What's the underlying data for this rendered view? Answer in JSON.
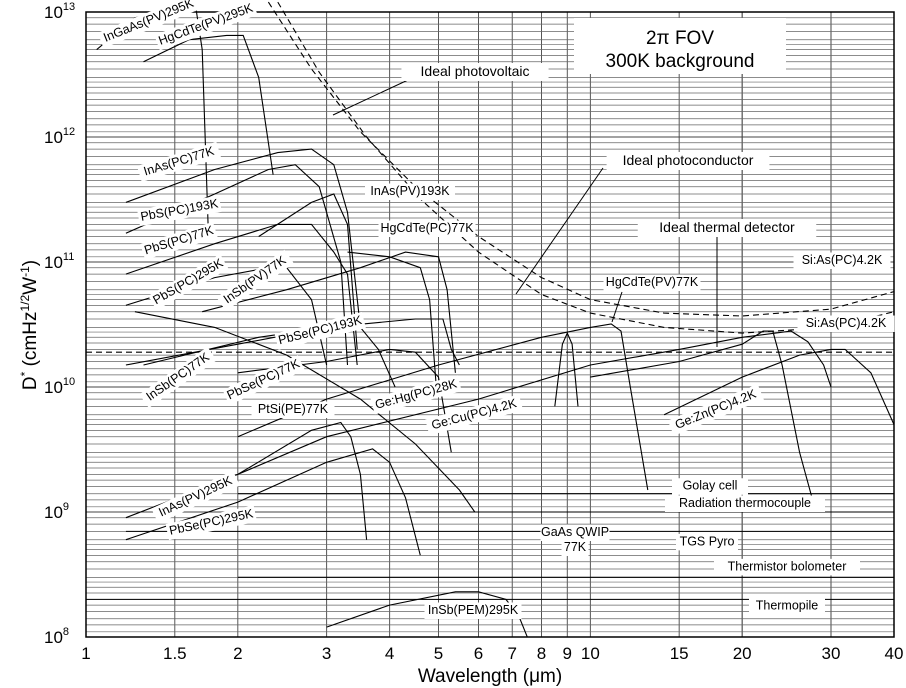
{
  "chart_data": {
    "type": "line",
    "title": "",
    "xlabel": "Wavelength (μm)",
    "ylabel": "D* (cmHz^1/2W^-1)",
    "x_scale": "log",
    "y_scale": "log",
    "xlim": [
      1,
      40
    ],
    "ylim": [
      100000000.0,
      10000000000000.0
    ],
    "grid": true,
    "x_ticks": [
      {
        "v": 1,
        "t": "1"
      },
      {
        "v": 1.5,
        "t": "1.5"
      },
      {
        "v": 2,
        "t": "2"
      },
      {
        "v": 3,
        "t": "3"
      },
      {
        "v": 4,
        "t": "4"
      },
      {
        "v": 5,
        "t": "5"
      },
      {
        "v": 6,
        "t": "6"
      },
      {
        "v": 7,
        "t": "7"
      },
      {
        "v": 8,
        "t": "8"
      },
      {
        "v": 9,
        "t": "9"
      },
      {
        "v": 10,
        "t": "10"
      },
      {
        "v": 15,
        "t": "15"
      },
      {
        "v": 20,
        "t": "20"
      },
      {
        "v": 30,
        "t": "30"
      },
      {
        "v": 40,
        "t": "40"
      }
    ],
    "y_ticks": [
      {
        "v": 100000000.0,
        "base": "10",
        "exp": "8"
      },
      {
        "v": 1000000000.0,
        "base": "10",
        "exp": "9"
      },
      {
        "v": 10000000000.0,
        "base": "10",
        "exp": "10"
      },
      {
        "v": 100000000000.0,
        "base": "10",
        "exp": "11"
      },
      {
        "v": 1000000000000.0,
        "base": "10",
        "exp": "12"
      },
      {
        "v": 10000000000000.0,
        "base": "10",
        "exp": "13"
      }
    ],
    "annotation": [
      "2π  FOV",
      "300K background"
    ],
    "ideal_curves": [
      {
        "name": "Ideal photovoltaic",
        "points": [
          [
            2.3,
            12000000000000.0
          ],
          [
            2.8,
            3500000000000.0
          ],
          [
            3.5,
            1100000000000.0
          ],
          [
            4.5,
            400000000000.0
          ],
          [
            6,
            160000000000.0
          ],
          [
            8,
            75000000000.0
          ],
          [
            10,
            50000000000.0
          ],
          [
            14,
            39000000000.0
          ],
          [
            20,
            37000000000.0
          ],
          [
            30,
            42000000000.0
          ],
          [
            40,
            58000000000.0
          ]
        ]
      },
      {
        "name": "Ideal photoconductor",
        "points": [
          [
            2.4,
            12000000000000.0
          ],
          [
            2.9,
            3300000000000.0
          ],
          [
            3.6,
            1000000000000.0
          ],
          [
            4.6,
            320000000000.0
          ],
          [
            6,
            120000000000.0
          ],
          [
            8,
            55000000000.0
          ],
          [
            10,
            39000000000.0
          ],
          [
            14,
            30000000000.0
          ],
          [
            20,
            27000000000.0
          ],
          [
            30,
            30000000000.0
          ],
          [
            40,
            40000000000.0
          ]
        ]
      },
      {
        "name": "Ideal thermal detector",
        "points": [
          [
            1,
            19000000000.0
          ],
          [
            40,
            19000000000.0
          ]
        ]
      }
    ],
    "thermal_detectors": [
      {
        "name": "Golay cell",
        "value": 1400000000.0,
        "x_start": 2
      },
      {
        "name": "Radiation thermocouple",
        "value": 1000000000.0,
        "x_start": 4.5
      },
      {
        "name": "TGS Pyro",
        "value": 700000000.0,
        "x_start": 1.2
      },
      {
        "name": "Thermistor bolometer",
        "value": 300000000.0,
        "x_start": 2
      },
      {
        "name": "Thermopile",
        "value": 200000000.0,
        "x_start": 1
      }
    ],
    "series": [
      {
        "name": "InGaAs(PV)295K",
        "points": [
          [
            1.05,
            5000000000000.0
          ],
          [
            1.25,
            9000000000000.0
          ],
          [
            1.5,
            10500000000000.0
          ],
          [
            1.65,
            11000000000000.0
          ],
          [
            1.7,
            5000000000000.0
          ],
          [
            1.75,
            150000000000.0
          ]
        ]
      },
      {
        "name": "HgCdTe(PV)295K",
        "points": [
          [
            1.3,
            4000000000000.0
          ],
          [
            1.6,
            6000000000000.0
          ],
          [
            1.9,
            6500000000000.0
          ],
          [
            2.05,
            6500000000000.0
          ],
          [
            2.2,
            3000000000000.0
          ],
          [
            2.35,
            500000000000.0
          ]
        ]
      },
      {
        "name": "InAs(PC)77K",
        "points": [
          [
            1.2,
            300000000000.0
          ],
          [
            1.8,
            550000000000.0
          ],
          [
            2.4,
            750000000000.0
          ],
          [
            2.8,
            800000000000.0
          ],
          [
            3.1,
            600000000000.0
          ],
          [
            3.3,
            250000000000.0
          ],
          [
            3.5,
            30000000000.0
          ]
        ]
      },
      {
        "name": "PbS(PC)193K",
        "points": [
          [
            1.2,
            170000000000.0
          ],
          [
            1.8,
            350000000000.0
          ],
          [
            2.3,
            550000000000.0
          ],
          [
            2.6,
            600000000000.0
          ],
          [
            2.9,
            400000000000.0
          ],
          [
            3.2,
            100000000000.0
          ],
          [
            3.3,
            15000000000.0
          ]
        ]
      },
      {
        "name": "InAs(PV)193K",
        "points": [
          [
            2.2,
            160000000000.0
          ],
          [
            2.8,
            300000000000.0
          ],
          [
            3.1,
            350000000000.0
          ],
          [
            3.3,
            200000000000.0
          ],
          [
            3.45,
            20000000000.0
          ]
        ]
      },
      {
        "name": "PbS(PC)77K",
        "points": [
          [
            1.2,
            80000000000.0
          ],
          [
            1.8,
            140000000000.0
          ],
          [
            2.4,
            200000000000.0
          ],
          [
            2.8,
            200000000000.0
          ],
          [
            3.1,
            120000000000.0
          ],
          [
            3.3,
            80000000000.0
          ],
          [
            3.45,
            15000000000.0
          ]
        ]
      },
      {
        "name": "HgCdTe(PC)77K",
        "points": [
          [
            3.3,
            120000000000.0
          ],
          [
            4,
            110000000000.0
          ],
          [
            4.6,
            90000000000.0
          ],
          [
            4.8,
            50000000000.0
          ],
          [
            4.95,
            10000000000.0
          ]
        ]
      },
      {
        "name": "InSb(PV)77K",
        "points": [
          [
            1.7,
            40000000000.0
          ],
          [
            2.5,
            60000000000.0
          ],
          [
            3.5,
            90000000000.0
          ],
          [
            4.3,
            120000000000.0
          ],
          [
            5,
            110000000000.0
          ],
          [
            5.2,
            60000000000.0
          ],
          [
            5.4,
            13000000000.0
          ]
        ]
      },
      {
        "name": "PbS(PC)295K",
        "points": [
          [
            1.2,
            45000000000.0
          ],
          [
            1.8,
            75000000000.0
          ],
          [
            2.3,
            90000000000.0
          ],
          [
            2.5,
            90000000000.0
          ],
          [
            2.8,
            50000000000.0
          ],
          [
            3,
            15000000000.0
          ]
        ]
      },
      {
        "name": "PbSe(PC)193K",
        "points": [
          [
            1.3,
            15000000000.0
          ],
          [
            2.2,
            25000000000.0
          ],
          [
            3,
            30000000000.0
          ],
          [
            3.5,
            30000000000.0
          ],
          [
            3.8,
            20000000000.0
          ],
          [
            4.1,
            10000000000.0
          ]
        ]
      },
      {
        "name": "InSb(PC)77K",
        "points": [
          [
            1.2,
            15000000000.0
          ],
          [
            2,
            22000000000.0
          ],
          [
            3,
            30000000000.0
          ],
          [
            4.5,
            35000000000.0
          ],
          [
            5.1,
            35000000000.0
          ],
          [
            5.3,
            20000000000.0
          ],
          [
            5.5,
            15000000000.0
          ]
        ]
      },
      {
        "name": "PbSe(PC)77K",
        "points": [
          [
            2,
            13000000000.0
          ],
          [
            3,
            16000000000.0
          ],
          [
            4,
            20000000000.0
          ],
          [
            4.5,
            19000000000.0
          ],
          [
            5,
            12000000000.0
          ],
          [
            5.3,
            3000000000.0
          ]
        ]
      },
      {
        "name": "PtSi(PE)77K",
        "points": [
          [
            1.25,
            40000000000.0
          ],
          [
            1.8,
            30000000000.0
          ],
          [
            2.5,
            18000000000.0
          ],
          [
            3.5,
            8000000000.0
          ],
          [
            4.5,
            3500000000.0
          ],
          [
            5.5,
            1500000000.0
          ],
          [
            5.9,
            1000000000.0
          ]
        ]
      },
      {
        "name": "Ge:Hg(PC)28K",
        "points": [
          [
            2,
            4000000000.0
          ],
          [
            3,
            8000000000.0
          ],
          [
            5,
            15000000000.0
          ],
          [
            8,
            25000000000.0
          ],
          [
            10,
            30000000000.0
          ],
          [
            11,
            32000000000.0
          ],
          [
            11.5,
            28000000000.0
          ],
          [
            12,
            10000000000.0
          ],
          [
            13,
            1500000000.0
          ]
        ]
      },
      {
        "name": "Ge:Cu(PC)4.2K",
        "points": [
          [
            2,
            2000000000.0
          ],
          [
            3,
            4000000000.0
          ],
          [
            6,
            8000000000.0
          ],
          [
            10,
            15000000000.0
          ],
          [
            15,
            20000000000.0
          ],
          [
            20,
            25000000000.0
          ],
          [
            25,
            28000000000.0
          ],
          [
            27,
            23000000000.0
          ],
          [
            29,
            15000000000.0
          ],
          [
            30,
            10000000000.0
          ]
        ]
      },
      {
        "name": "InAs(PV)295K",
        "points": [
          [
            1.2,
            900000000.0
          ],
          [
            2,
            2000000000.0
          ],
          [
            2.8,
            4500000000.0
          ],
          [
            3.2,
            5200000000.0
          ],
          [
            3.35,
            4000000000.0
          ],
          [
            3.5,
            2000000000.0
          ],
          [
            3.6,
            600000000.0
          ]
        ]
      },
      {
        "name": "PbSe(PC)295K",
        "points": [
          [
            1.2,
            600000000.0
          ],
          [
            2,
            1200000000.0
          ],
          [
            3,
            2500000000.0
          ],
          [
            3.7,
            3200000000.0
          ],
          [
            4,
            2500000000.0
          ],
          [
            4.3,
            1300000000.0
          ],
          [
            4.6,
            450000000.0
          ]
        ]
      },
      {
        "name": "GaAs QWIP 77K",
        "points": [
          [
            8.5,
            7000000000.0
          ],
          [
            8.8,
            22000000000.0
          ],
          [
            9,
            27000000000.0
          ],
          [
            9.2,
            22000000000.0
          ],
          [
            9.45,
            7000000000.0
          ]
        ]
      },
      {
        "name": "Ge:Zn(PC)4.2K",
        "points": [
          [
            10,
            12000000000.0
          ],
          [
            15,
            16000000000.0
          ],
          [
            20,
            22000000000.0
          ],
          [
            22,
            28000000000.0
          ],
          [
            23,
            28000000000.0
          ],
          [
            24,
            15000000000.0
          ],
          [
            26,
            3000000000.0
          ],
          [
            28,
            1000000000.0
          ]
        ]
      },
      {
        "name": "Si:As(PC)4.2K",
        "points": [
          [
            14,
            6000000000.0
          ],
          [
            20,
            12000000000.0
          ],
          [
            26,
            18000000000.0
          ],
          [
            30,
            20000000000.0
          ],
          [
            32,
            20000000000.0
          ],
          [
            36,
            13000000000.0
          ],
          [
            40,
            5000000000.0
          ]
        ]
      },
      {
        "name": "InSb(PEM)295K",
        "points": [
          [
            3,
            120000000.0
          ],
          [
            4,
            180000000.0
          ],
          [
            5.4,
            230000000.0
          ],
          [
            6,
            230000000.0
          ],
          [
            6.8,
            200000000.0
          ],
          [
            7.2,
            150000000.0
          ],
          [
            7.5,
            100000000.0
          ]
        ]
      }
    ]
  }
}
